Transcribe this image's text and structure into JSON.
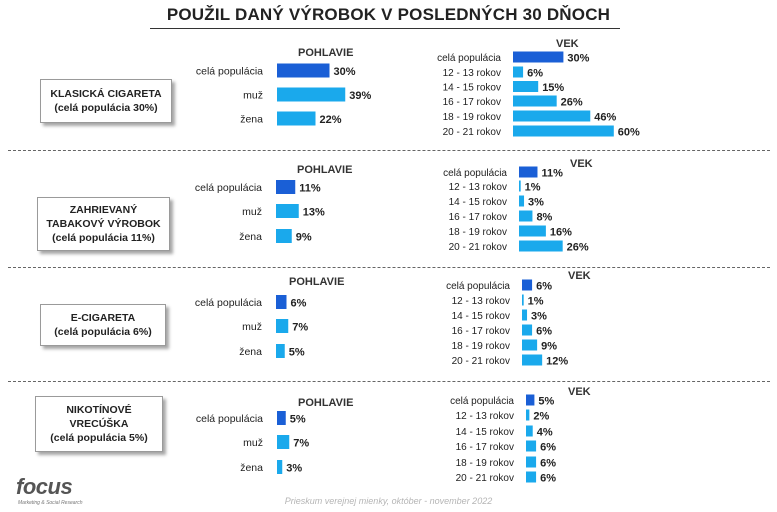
{
  "title": "POUŽIL DANÝ VÝROBOK V POSLEDNÝCH 30 DŇOCH",
  "footer": "Prieskum verejnej mienky, október - november 2022",
  "logo": {
    "word": "focus",
    "sub": "Marketing & Social Research"
  },
  "colors": {
    "dark_bar": "#1a5fd6",
    "light_bar": "#1aa9ec"
  },
  "chart_data": {
    "type": "bar",
    "unit": "%",
    "panels": [
      {
        "category_lines": [
          "KLASICKÁ CIGARETA",
          "(celá populácia 30%)"
        ],
        "gender_header": "POHLAVIE",
        "gender": {
          "categories": [
            "celá populácia",
            "muž",
            "žena"
          ],
          "values": [
            30,
            39,
            22
          ],
          "labels": [
            "30%",
            "39%",
            "22%"
          ]
        },
        "age_header": "VEK",
        "age": {
          "categories": [
            "celá populácia",
            "12 - 13 rokov",
            "14 - 15 rokov",
            "16 - 17 rokov",
            "18 - 19 rokov",
            "20 - 21 rokov"
          ],
          "values": [
            30,
            6,
            15,
            26,
            46,
            60
          ],
          "labels": [
            "30%",
            "6%",
            "15%",
            "26%",
            "46%",
            "60%"
          ]
        }
      },
      {
        "category_lines": [
          "ZAHRIEVANÝ",
          "TABAKOVÝ VÝROBOK",
          "(celá populácia 11%)"
        ],
        "gender_header": "POHLAVIE",
        "gender": {
          "categories": [
            "celá populácia",
            "muž",
            "žena"
          ],
          "values": [
            11,
            13,
            9
          ],
          "labels": [
            "11%",
            "13%",
            "9%"
          ]
        },
        "age_header": "VEK",
        "age": {
          "categories": [
            "celá populácia",
            "12 - 13 rokov",
            "14 - 15 rokov",
            "16 - 17 rokov",
            "18 - 19 rokov",
            "20 - 21 rokov"
          ],
          "values": [
            11,
            1,
            3,
            8,
            16,
            26
          ],
          "labels": [
            "11%",
            "1%",
            "3%",
            "8%",
            "16%",
            "26%"
          ]
        }
      },
      {
        "category_lines": [
          "E-CIGARETA",
          "(celá populácia 6%)"
        ],
        "gender_header": "POHLAVIE",
        "gender": {
          "categories": [
            "celá populácia",
            "muž",
            "žena"
          ],
          "values": [
            6,
            7,
            5
          ],
          "labels": [
            "6%",
            "7%",
            "5%"
          ]
        },
        "age_header": "VEK",
        "age": {
          "categories": [
            "celá populácia",
            "12 - 13 rokov",
            "14 - 15 rokov",
            "16 - 17 rokov",
            "18 - 19 rokov",
            "20 - 21 rokov"
          ],
          "values": [
            6,
            1,
            3,
            6,
            9,
            12
          ],
          "labels": [
            "6%",
            "1%",
            "3%",
            "6%",
            "9%",
            "12%"
          ]
        }
      },
      {
        "category_lines": [
          "NIKOTÍNOVÉ",
          "VRECÚŠKA",
          "(celá populácia 5%)"
        ],
        "gender_header": "POHLAVIE",
        "gender": {
          "categories": [
            "celá populácia",
            "muž",
            "žena"
          ],
          "values": [
            5,
            7,
            3
          ],
          "labels": [
            "5%",
            "7%",
            "3%"
          ]
        },
        "age_header": "VEK",
        "age": {
          "categories": [
            "celá populácia",
            "12 - 13 rokov",
            "14 - 15 rokov",
            "16 - 17 rokov",
            "18 - 19 rokov",
            "20 - 21 rokov"
          ],
          "values": [
            5,
            2,
            4,
            6,
            6,
            6
          ],
          "labels": [
            "5%",
            "2%",
            "4%",
            "6%",
            "6%",
            "6%"
          ]
        }
      }
    ]
  }
}
